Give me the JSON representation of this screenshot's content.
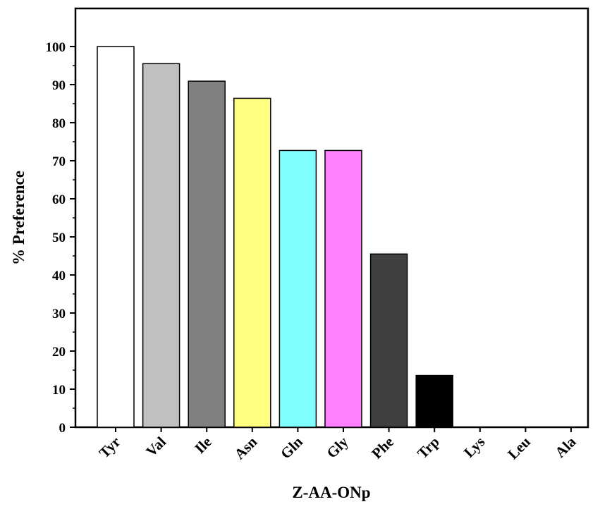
{
  "chart_data": {
    "type": "bar",
    "title": "",
    "xlabel": "Z-AA-ONp",
    "ylabel": "% Preference",
    "ylim": [
      0,
      110
    ],
    "yticks": [
      0,
      10,
      20,
      30,
      40,
      50,
      60,
      70,
      80,
      90,
      100
    ],
    "grid": false,
    "categories": [
      "Tyr",
      "Val",
      "Ile",
      "Asn",
      "Gln",
      "Gly",
      "Phe",
      "Trp",
      "Lys",
      "Leu",
      "Ala"
    ],
    "values": [
      100,
      95.5,
      90.9,
      86.4,
      72.7,
      72.7,
      45.5,
      13.6,
      0,
      0,
      0
    ],
    "colors": [
      "#ffffff",
      "#c0c0c0",
      "#808080",
      "#ffff80",
      "#80ffff",
      "#ff80ff",
      "#404040",
      "#000000",
      "#ffffff",
      "#ffffff",
      "#ffffff"
    ]
  }
}
